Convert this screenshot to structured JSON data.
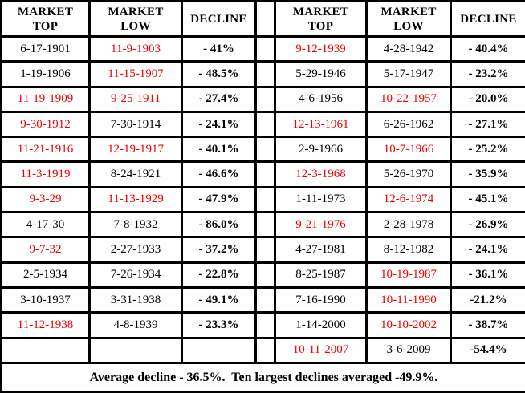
{
  "colors": {
    "red_date": "#f00000",
    "black_text": "#000000",
    "border": "#000000",
    "background": "#ffffff"
  },
  "header": {
    "market_top": "MARKET\nTOP",
    "market_low": "MARKET\nLOW",
    "decline": "DECLINE"
  },
  "table": {
    "left_rows": [
      {
        "top": {
          "text": "6-17-1901",
          "red": false
        },
        "low": {
          "text": "11-9-1903",
          "red": true
        },
        "decline": "- 41%"
      },
      {
        "top": {
          "text": "1-19-1906",
          "red": false
        },
        "low": {
          "text": "11-15-1907",
          "red": true
        },
        "decline": "- 48.5%"
      },
      {
        "top": {
          "text": "11-19-1909",
          "red": true
        },
        "low": {
          "text": "9-25-1911",
          "red": true
        },
        "decline": "- 27.4%"
      },
      {
        "top": {
          "text": "9-30-1912",
          "red": true
        },
        "low": {
          "text": "7-30-1914",
          "red": false
        },
        "decline": "- 24.1%"
      },
      {
        "top": {
          "text": "11-21-1916",
          "red": true
        },
        "low": {
          "text": "12-19-1917",
          "red": true
        },
        "decline": "- 40.1%"
      },
      {
        "top": {
          "text": "11-3-1919",
          "red": true
        },
        "low": {
          "text": "8-24-1921",
          "red": false
        },
        "decline": "- 46.6%"
      },
      {
        "top": {
          "text": "9-3-29",
          "red": true
        },
        "low": {
          "text": "11-13-1929",
          "red": true
        },
        "decline": "- 47.9%"
      },
      {
        "top": {
          "text": "4-17-30",
          "red": false
        },
        "low": {
          "text": "7-8-1932",
          "red": false
        },
        "decline": "- 86.0%"
      },
      {
        "top": {
          "text": "9-7-32",
          "red": true
        },
        "low": {
          "text": "2-27-1933",
          "red": false
        },
        "decline": "- 37.2%"
      },
      {
        "top": {
          "text": "2-5-1934",
          "red": false
        },
        "low": {
          "text": "7-26-1934",
          "red": false
        },
        "decline": "- 22.8%"
      },
      {
        "top": {
          "text": "3-10-1937",
          "red": false
        },
        "low": {
          "text": "3-31-1938",
          "red": false
        },
        "decline": "- 49.1%"
      },
      {
        "top": {
          "text": "11-12-1938",
          "red": true
        },
        "low": {
          "text": "4-8-1939",
          "red": false
        },
        "decline": "- 23.3%"
      },
      {
        "top": {
          "text": "",
          "red": false
        },
        "low": {
          "text": "",
          "red": false
        },
        "decline": ""
      }
    ],
    "right_rows": [
      {
        "top": {
          "text": "9-12-1939",
          "red": true
        },
        "low": {
          "text": "4-28-1942",
          "red": false
        },
        "decline": "- 40.4%"
      },
      {
        "top": {
          "text": "5-29-1946",
          "red": false
        },
        "low": {
          "text": "5-17-1947",
          "red": false
        },
        "decline": "- 23.2%"
      },
      {
        "top": {
          "text": "4-6-1956",
          "red": false
        },
        "low": {
          "text": "10-22-1957",
          "red": true
        },
        "decline": "- 20.0%"
      },
      {
        "top": {
          "text": "12-13-1961",
          "red": true
        },
        "low": {
          "text": "6-26-1962",
          "red": false
        },
        "decline": "- 27.1%"
      },
      {
        "top": {
          "text": "2-9-1966",
          "red": false
        },
        "low": {
          "text": "10-7-1966",
          "red": true
        },
        "decline": "- 25.2%"
      },
      {
        "top": {
          "text": "12-3-1968",
          "red": true
        },
        "low": {
          "text": "5-26-1970",
          "red": false
        },
        "decline": "- 35.9%"
      },
      {
        "top": {
          "text": "1-11-1973",
          "red": false
        },
        "low": {
          "text": "12-6-1974",
          "red": true
        },
        "decline": "- 45.1%"
      },
      {
        "top": {
          "text": "9-21-1976",
          "red": true
        },
        "low": {
          "text": "2-28-1978",
          "red": false
        },
        "decline": "- 26.9%"
      },
      {
        "top": {
          "text": "4-27-1981",
          "red": false
        },
        "low": {
          "text": "8-12-1982",
          "red": false
        },
        "decline": "- 24.1%"
      },
      {
        "top": {
          "text": "8-25-1987",
          "red": false
        },
        "low": {
          "text": "10-19-1987",
          "red": true
        },
        "decline": "- 36.1%"
      },
      {
        "top": {
          "text": "7-16-1990",
          "red": false
        },
        "low": {
          "text": "10-11-1990",
          "red": true
        },
        "decline": "-21.2%"
      },
      {
        "top": {
          "text": "1-14-2000",
          "red": false
        },
        "low": {
          "text": "10-10-2002",
          "red": true
        },
        "decline": "- 38.7%"
      },
      {
        "top": {
          "text": "10-11-2007",
          "red": true
        },
        "low": {
          "text": "3-6-2009",
          "red": false
        },
        "decline": "-54.4%"
      }
    ]
  },
  "footer": {
    "text": "Average decline - 36.5%.  Ten largest declines averaged -49.9%."
  }
}
